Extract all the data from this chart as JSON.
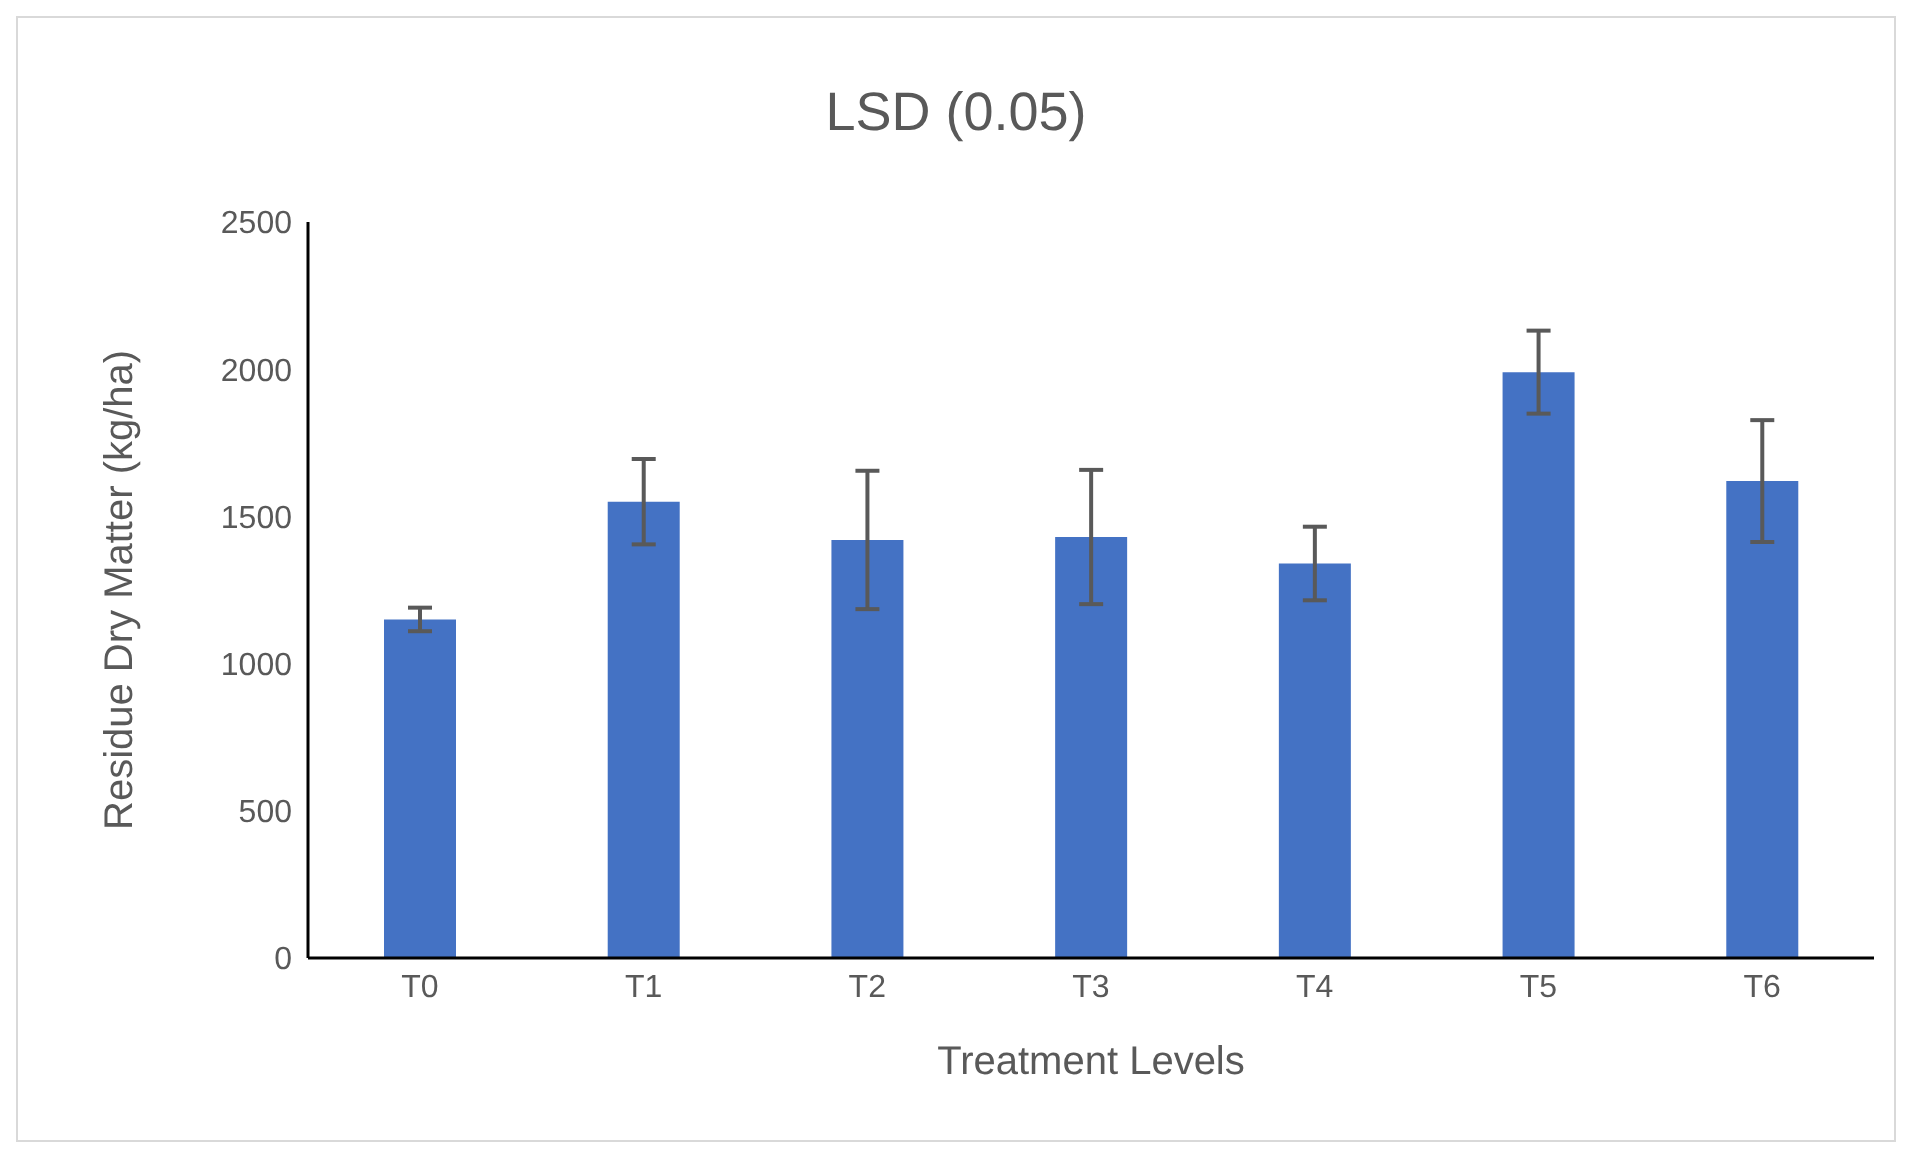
{
  "chart_data": {
    "type": "bar",
    "title": "LSD (0.05)",
    "xlabel": "Treatment Levels",
    "ylabel": "Residue Dry Matter (kg/ha)",
    "categories": [
      "T0",
      "T1",
      "T2",
      "T3",
      "T4",
      "T5",
      "T6"
    ],
    "values": [
      1150,
      1550,
      1420,
      1430,
      1340,
      1990,
      1620
    ],
    "errors": [
      40,
      145,
      235,
      228,
      125,
      141,
      207
    ],
    "color": "#4472c4",
    "ylim": [
      0,
      2500
    ],
    "yticks": [
      0,
      500,
      1000,
      1500,
      2000,
      2500
    ],
    "grid": false
  }
}
